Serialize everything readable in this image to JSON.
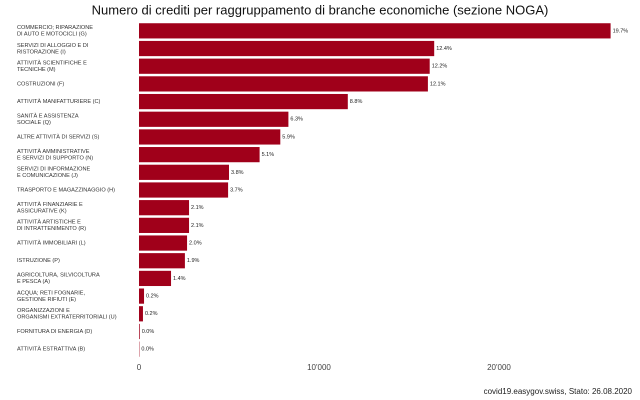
{
  "chart_data": {
    "type": "hbar",
    "title": "Numero di crediti per raggruppamento di branche economiche (sezione NOGA)",
    "caption": "covid19.easygov.swiss, Stato: 26.08.2020",
    "categories": [
      [
        "COMMERCIO; RIPARAZIONE",
        "DI AUTO E MOTOCICLI (G)"
      ],
      [
        "SERVIZI DI ALLOGGIO E DI",
        "RISTORAZIONE (I)"
      ],
      [
        "ATTIVITÀ SCIENTIFICHE E",
        "TECNICHE (M)"
      ],
      [
        "COSTRUZIONI (F)"
      ],
      [
        "ATTIVITÀ MANIFATTURIERE (C)"
      ],
      [
        "SANITÀ E ASSISTENZA",
        "SOCIALE (Q)"
      ],
      [
        "ALTRE ATTIVITÀ DI SERVIZI (S)"
      ],
      [
        "ATTIVITÀ AMMINISTRATIVE",
        "E SERVIZI DI SUPPORTO (N)"
      ],
      [
        "SERVIZI DI INFORMAZIONE",
        "E COMUNICAZIONE (J)"
      ],
      [
        "TRASPORTO E MAGAZZINAGGIO (H)"
      ],
      [
        "ATTIVITÀ FINANZIARIE E",
        "ASSICURATIVE (K)"
      ],
      [
        "ATTIVITÀ ARTISTICHE E",
        "DI INTRATTENIMENTO (R)"
      ],
      [
        "ATTIVITÀ IMMOBILIARI (L)"
      ],
      [
        "ISTRUZIONE (P)"
      ],
      [
        "AGRICOLTURA, SILVICOLTURA",
        "E PESCA (A)"
      ],
      [
        "ACQUA; RETI FOGNARIE,",
        "GESTIONE RIFIUTI (E)"
      ],
      [
        "ORGANIZZAZIONI E",
        "ORGANISMI EXTRATERRITORIALI (U)"
      ],
      [
        "FORNITURA DI ENERGIA  (D)"
      ],
      [
        "ATTIVITÀ ESTRATTIVA (B)"
      ]
    ],
    "values": [
      26200,
      16400,
      16150,
      16050,
      11600,
      8300,
      7850,
      6700,
      5000,
      4950,
      2780,
      2780,
      2670,
      2550,
      1780,
      280,
      220,
      40,
      20
    ],
    "percent_labels": [
      "19.7%",
      "12.4%",
      "12.2%",
      "12.1%",
      "8.8%",
      "6.3%",
      "5.9%",
      "5.1%",
      "3.8%",
      "3.7%",
      "2.1%",
      "2.1%",
      "2.0%",
      "1.9%",
      "1.4%",
      "0.2%",
      "0.2%",
      "0.0%",
      "0.0%"
    ],
    "color": "#a0001a",
    "xlim": [
      -500,
      27000
    ],
    "xticks": [
      0,
      {
        "value": 10000,
        "label": "10'000"
      },
      {
        "value": 20000,
        "label": "20'000"
      }
    ],
    "grid": false
  }
}
